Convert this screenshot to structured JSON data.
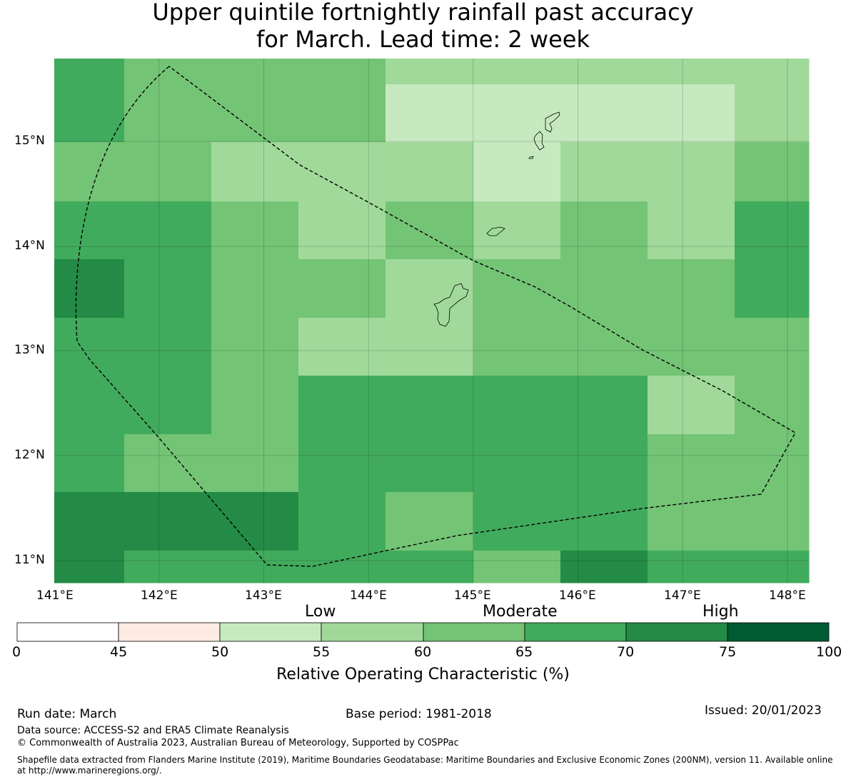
{
  "title": {
    "line1": "Upper quintile fortnightly rainfall past accuracy",
    "line2": "for March. Lead time: 2 week"
  },
  "map": {
    "lon_range": [
      141.0,
      148.2
    ],
    "lat_range": [
      10.8,
      15.8
    ],
    "x_ticks": [
      "141°E",
      "142°E",
      "143°E",
      "144°E",
      "145°E",
      "146°E",
      "147°E",
      "148°E"
    ],
    "y_ticks": [
      "15°N",
      "14°N",
      "13°N",
      "12°N",
      "11°N"
    ],
    "grid": true,
    "eez_boundary": "dashed",
    "roc_grid": [
      [
        65,
        60,
        60,
        60,
        55,
        55,
        55,
        55,
        55
      ],
      [
        65,
        60,
        60,
        60,
        50,
        50,
        50,
        50,
        55
      ],
      [
        60,
        60,
        55,
        55,
        55,
        50,
        55,
        55,
        60
      ],
      [
        65,
        65,
        60,
        55,
        60,
        55,
        60,
        55,
        65
      ],
      [
        70,
        65,
        60,
        60,
        55,
        60,
        60,
        60,
        65
      ],
      [
        65,
        65,
        60,
        55,
        55,
        60,
        60,
        60,
        60
      ],
      [
        65,
        65,
        60,
        65,
        65,
        65,
        65,
        55,
        60
      ],
      [
        65,
        60,
        60,
        65,
        65,
        65,
        65,
        60,
        60
      ],
      [
        70,
        70,
        70,
        65,
        60,
        65,
        65,
        60,
        60
      ],
      [
        70,
        65,
        65,
        65,
        65,
        60,
        70,
        65,
        65
      ]
    ]
  },
  "colorbar": {
    "bins": [
      {
        "from": 0,
        "to": 45,
        "color": "#ffffff"
      },
      {
        "from": 45,
        "to": 50,
        "color": "#fdeae2"
      },
      {
        "from": 50,
        "to": 55,
        "color": "#c7e9c0"
      },
      {
        "from": 55,
        "to": 60,
        "color": "#a1d99b"
      },
      {
        "from": 60,
        "to": 65,
        "color": "#74c476"
      },
      {
        "from": 65,
        "to": 70,
        "color": "#41ab5d"
      },
      {
        "from": 70,
        "to": 75,
        "color": "#238b45"
      },
      {
        "from": 75,
        "to": 100,
        "color": "#005a32"
      }
    ],
    "ticks": [
      "0",
      "45",
      "50",
      "55",
      "60",
      "65",
      "70",
      "75",
      "100"
    ],
    "categories": [
      "Low",
      "Moderate",
      "High"
    ],
    "label": "Relative Operating Characteristic (%)"
  },
  "footer": {
    "run_date": "Run date: March",
    "base_period": "Base period: 1981-2018",
    "issued": "Issued: 20/01/2023",
    "data_source": "Data source: ACCESS-S2 and ERA5 Climate Reanalysis",
    "copyright": "© Commonwealth of Australia 2023, Australian Bureau of Meteorology, Supported by COSPPac",
    "shapefile_line1": "Shapefile data extracted from Flanders Marine Institute (2019), Maritime Boundaries Geodatabase: Maritime Boundaries and Exclusive Economic Zones (200NM), version 11. Available online",
    "shapefile_line2": "at http://www.marineregions.org/."
  }
}
